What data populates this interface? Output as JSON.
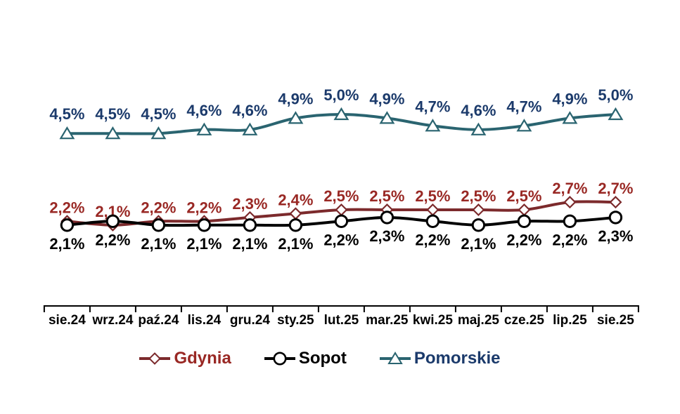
{
  "background_color": "#ffffff",
  "axis_color": "#000000",
  "chart_data": {
    "type": "line",
    "title": "",
    "xlabel": "",
    "ylabel": "",
    "grid": false,
    "value_axis_visible": false,
    "ylim": [
      0,
      6
    ],
    "legend_position": "bottom",
    "categories": [
      "sie.24",
      "wrz.24",
      "paź.24",
      "lis.24",
      "gru.24",
      "sty.25",
      "lut.25",
      "mar.25",
      "kwi.25",
      "maj.25",
      "cze.25",
      "lip.25",
      "sie.25"
    ],
    "series": [
      {
        "name": "Gdynia",
        "marker": "diamond",
        "line_color": "#7C2A2C",
        "label_color": "#992824",
        "values": [
          2.2,
          2.1,
          2.2,
          2.2,
          2.3,
          2.4,
          2.5,
          2.5,
          2.5,
          2.5,
          2.5,
          2.7,
          2.7
        ],
        "labels": [
          "2,2%",
          "2,1%",
          "2,2%",
          "2,2%",
          "2,3%",
          "2,4%",
          "2,5%",
          "2,5%",
          "2,5%",
          "2,5%",
          "2,5%",
          "2,7%",
          "2,7%"
        ]
      },
      {
        "name": "Sopot",
        "marker": "circle",
        "line_color": "#000000",
        "label_color": "#000000",
        "values": [
          2.1,
          2.2,
          2.1,
          2.1,
          2.1,
          2.1,
          2.2,
          2.3,
          2.2,
          2.1,
          2.2,
          2.2,
          2.3
        ],
        "labels": [
          "2,1%",
          "2,2%",
          "2,1%",
          "2,1%",
          "2,1%",
          "2,1%",
          "2,2%",
          "2,3%",
          "2,2%",
          "2,1%",
          "2,2%",
          "2,2%",
          "2,3%"
        ]
      },
      {
        "name": "Pomorskie",
        "marker": "triangle",
        "line_color": "#2A6470",
        "label_color": "#1B3A6B",
        "values": [
          4.5,
          4.5,
          4.5,
          4.6,
          4.6,
          4.9,
          5.0,
          4.9,
          4.7,
          4.6,
          4.7,
          4.9,
          5.0
        ],
        "labels": [
          "4,5%",
          "4,5%",
          "4,5%",
          "4,6%",
          "4,6%",
          "4,9%",
          "5,0%",
          "4,9%",
          "4,7%",
          "4,6%",
          "4,7%",
          "4,9%",
          "5,0%"
        ]
      }
    ]
  }
}
